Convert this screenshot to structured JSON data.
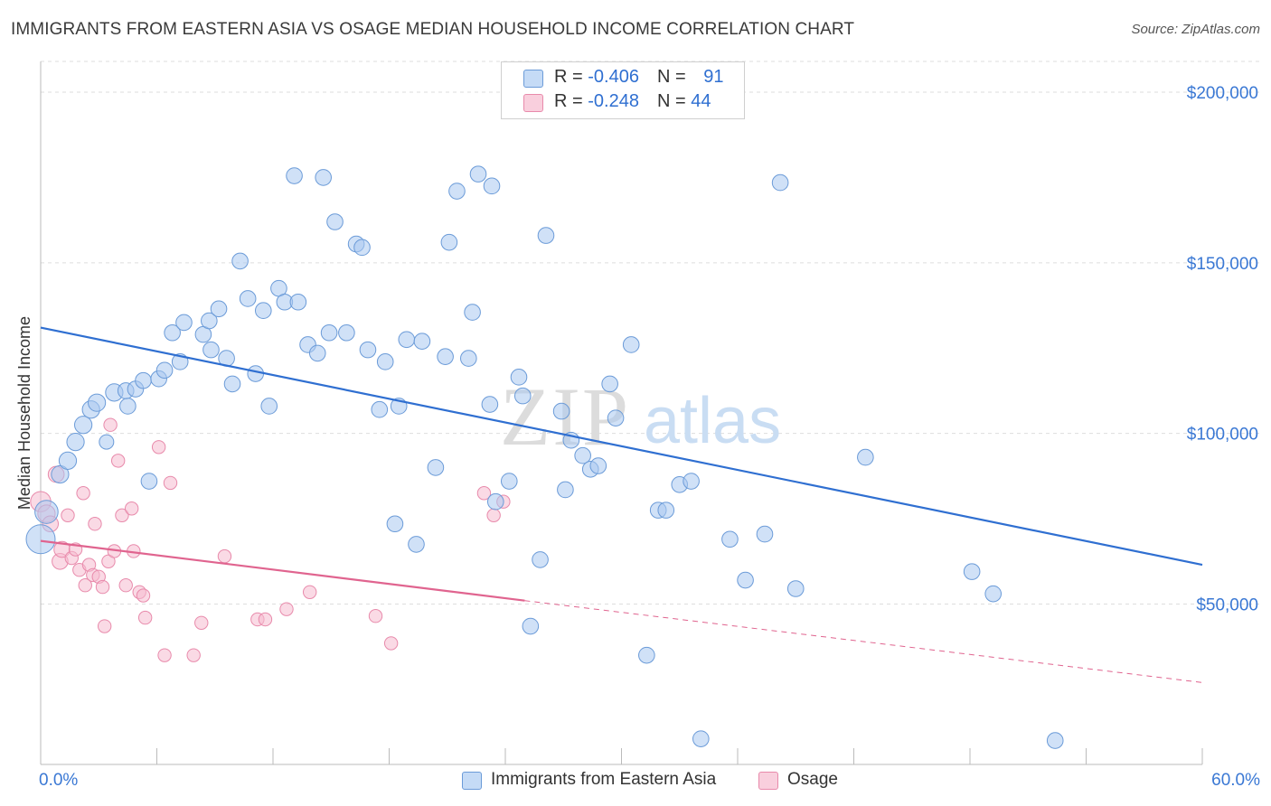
{
  "title": "IMMIGRANTS FROM EASTERN ASIA VS OSAGE MEDIAN HOUSEHOLD INCOME CORRELATION CHART",
  "source": "Source: ZipAtlas.com",
  "watermark": {
    "zip": "ZIP",
    "atlas": "atlas"
  },
  "colors": {
    "blue_fill": "#a9c8f0",
    "blue_stroke": "#6b9bd8",
    "blue_line": "#2f6fd1",
    "pink_fill": "#f6bcd0",
    "pink_stroke": "#e88aab",
    "pink_line": "#e0648f",
    "axis_label": "#3a78d4",
    "grid": "#dddddd"
  },
  "legend": {
    "series1": {
      "r_label": "R = ",
      "r_value": "-0.406",
      "n_label": "N = ",
      "n_value": "91"
    },
    "series2": {
      "r_label": "R = ",
      "r_value": "-0.248",
      "n_label": "N = ",
      "n_value": "44"
    }
  },
  "chart_data": {
    "type": "scatter",
    "title": "IMMIGRANTS FROM EASTERN ASIA VS OSAGE MEDIAN HOUSEHOLD INCOME CORRELATION CHART",
    "xlabel": "",
    "ylabel": "Median Household Income",
    "x_tick_labels": [
      "0.0%",
      "60.0%"
    ],
    "y_tick_labels": [
      "$50,000",
      "$100,000",
      "$150,000",
      "$200,000"
    ],
    "y_ticks": [
      50000,
      100000,
      150000,
      200000
    ],
    "xlim": [
      0,
      60
    ],
    "ylim": [
      3000,
      209000
    ],
    "grid": "horizontal dashed",
    "legend_position": "top-center and bottom",
    "series": [
      {
        "name": "Immigrants from Eastern Asia",
        "color": "blue",
        "trend": {
          "x": [
            0,
            60
          ],
          "y": [
            131000,
            61500
          ],
          "dashed_to": null
        },
        "points": [
          [
            0.0,
            69000,
            20
          ],
          [
            0.3,
            77000,
            16
          ],
          [
            1.0,
            88000,
            12
          ],
          [
            1.4,
            92000,
            12
          ],
          [
            1.8,
            97500,
            12
          ],
          [
            2.2,
            102500,
            12
          ],
          [
            2.6,
            107000,
            12
          ],
          [
            2.9,
            109000,
            12
          ],
          [
            3.4,
            97500,
            10
          ],
          [
            3.8,
            112000,
            12
          ],
          [
            4.5,
            108000,
            11
          ],
          [
            4.4,
            112500,
            11
          ],
          [
            4.9,
            113000,
            11
          ],
          [
            5.3,
            115500,
            11
          ],
          [
            5.6,
            86000,
            11
          ],
          [
            6.1,
            116000,
            11
          ],
          [
            6.4,
            118500,
            11
          ],
          [
            6.8,
            129500,
            11
          ],
          [
            7.2,
            121000,
            11
          ],
          [
            7.4,
            132500,
            11
          ],
          [
            8.4,
            129000,
            11
          ],
          [
            8.7,
            133000,
            11
          ],
          [
            8.8,
            124500,
            11
          ],
          [
            9.2,
            136500,
            11
          ],
          [
            9.6,
            122000,
            11
          ],
          [
            9.9,
            114500,
            11
          ],
          [
            10.3,
            150500,
            11
          ],
          [
            10.7,
            139500,
            11
          ],
          [
            11.1,
            117500,
            11
          ],
          [
            11.5,
            136000,
            11
          ],
          [
            11.8,
            108000,
            11
          ],
          [
            12.3,
            142500,
            11
          ],
          [
            12.6,
            138500,
            11
          ],
          [
            13.3,
            138500,
            11
          ],
          [
            13.1,
            175500,
            11
          ],
          [
            13.8,
            126000,
            11
          ],
          [
            14.3,
            123500,
            11
          ],
          [
            14.6,
            175000,
            11
          ],
          [
            14.9,
            129500,
            11
          ],
          [
            15.2,
            162000,
            11
          ],
          [
            15.8,
            129500,
            11
          ],
          [
            16.3,
            155500,
            11
          ],
          [
            16.6,
            154500,
            11
          ],
          [
            16.9,
            124500,
            11
          ],
          [
            17.5,
            107000,
            11
          ],
          [
            17.8,
            121000,
            11
          ],
          [
            18.3,
            73500,
            11
          ],
          [
            18.5,
            108000,
            11
          ],
          [
            18.9,
            127500,
            11
          ],
          [
            19.4,
            67500,
            11
          ],
          [
            19.7,
            127000,
            11
          ],
          [
            20.4,
            90000,
            11
          ],
          [
            20.9,
            122500,
            11
          ],
          [
            21.1,
            156000,
            11
          ],
          [
            21.5,
            171000,
            11
          ],
          [
            22.1,
            122000,
            11
          ],
          [
            22.3,
            135500,
            11
          ],
          [
            22.6,
            176000,
            11
          ],
          [
            23.2,
            108500,
            11
          ],
          [
            23.3,
            172500,
            11
          ],
          [
            23.5,
            80000,
            11
          ],
          [
            24.2,
            86000,
            11
          ],
          [
            24.7,
            116500,
            11
          ],
          [
            24.9,
            111000,
            11
          ],
          [
            25.3,
            43500,
            11
          ],
          [
            25.8,
            63000,
            11
          ],
          [
            26.1,
            158000,
            11
          ],
          [
            26.9,
            106500,
            11
          ],
          [
            27.1,
            83500,
            11
          ],
          [
            27.4,
            98000,
            11
          ],
          [
            28.0,
            93500,
            11
          ],
          [
            28.4,
            89500,
            11
          ],
          [
            28.8,
            90500,
            11
          ],
          [
            29.4,
            114500,
            11
          ],
          [
            29.7,
            104500,
            11
          ],
          [
            30.5,
            126000,
            11
          ],
          [
            31.3,
            35000,
            11
          ],
          [
            31.9,
            77500,
            11
          ],
          [
            32.3,
            77500,
            11
          ],
          [
            33.0,
            85000,
            11
          ],
          [
            33.6,
            86000,
            11
          ],
          [
            34.1,
            10500,
            11
          ],
          [
            35.6,
            69000,
            11
          ],
          [
            36.4,
            57000,
            11
          ],
          [
            37.4,
            70500,
            11
          ],
          [
            38.2,
            173500,
            11
          ],
          [
            39.0,
            54500,
            11
          ],
          [
            42.6,
            93000,
            11
          ],
          [
            48.1,
            59500,
            11
          ],
          [
            49.2,
            53000,
            11
          ],
          [
            52.4,
            10000,
            11
          ]
        ]
      },
      {
        "name": "Osage",
        "color": "pink",
        "trend": {
          "x": [
            0,
            25.0
          ],
          "y": [
            68500,
            51000
          ],
          "dashed_to": [
            60,
            27000
          ]
        },
        "points": [
          [
            0.0,
            80000,
            14
          ],
          [
            0.3,
            76500,
            12
          ],
          [
            0.5,
            73500,
            11
          ],
          [
            0.8,
            88000,
            11
          ],
          [
            1.0,
            62500,
            11
          ],
          [
            1.1,
            66000,
            11
          ],
          [
            1.4,
            76000,
            9
          ],
          [
            1.6,
            63500,
            9
          ],
          [
            1.8,
            66000,
            9
          ],
          [
            2.0,
            60000,
            9
          ],
          [
            2.2,
            82500,
            9
          ],
          [
            2.3,
            55500,
            9
          ],
          [
            2.5,
            61500,
            9
          ],
          [
            2.7,
            58500,
            9
          ],
          [
            2.8,
            73500,
            9
          ],
          [
            3.0,
            58000,
            9
          ],
          [
            3.2,
            55000,
            9
          ],
          [
            3.3,
            43500,
            9
          ],
          [
            3.5,
            62500,
            9
          ],
          [
            3.6,
            102500,
            9
          ],
          [
            3.8,
            65500,
            9
          ],
          [
            4.0,
            92000,
            9
          ],
          [
            4.2,
            76000,
            9
          ],
          [
            4.4,
            55500,
            9
          ],
          [
            4.7,
            78000,
            9
          ],
          [
            4.8,
            65500,
            9
          ],
          [
            5.1,
            53500,
            9
          ],
          [
            5.3,
            52500,
            9
          ],
          [
            5.4,
            46000,
            9
          ],
          [
            6.1,
            96000,
            9
          ],
          [
            6.4,
            35000,
            9
          ],
          [
            6.7,
            85500,
            9
          ],
          [
            7.9,
            35000,
            9
          ],
          [
            8.3,
            44500,
            9
          ],
          [
            9.5,
            64000,
            9
          ],
          [
            11.2,
            45500,
            9
          ],
          [
            11.6,
            45500,
            9
          ],
          [
            12.7,
            48500,
            9
          ],
          [
            13.9,
            53500,
            9
          ],
          [
            17.3,
            46500,
            9
          ],
          [
            18.1,
            38500,
            9
          ],
          [
            22.9,
            82500,
            9
          ],
          [
            23.4,
            76000,
            9
          ],
          [
            23.9,
            80000,
            9
          ]
        ]
      }
    ]
  }
}
